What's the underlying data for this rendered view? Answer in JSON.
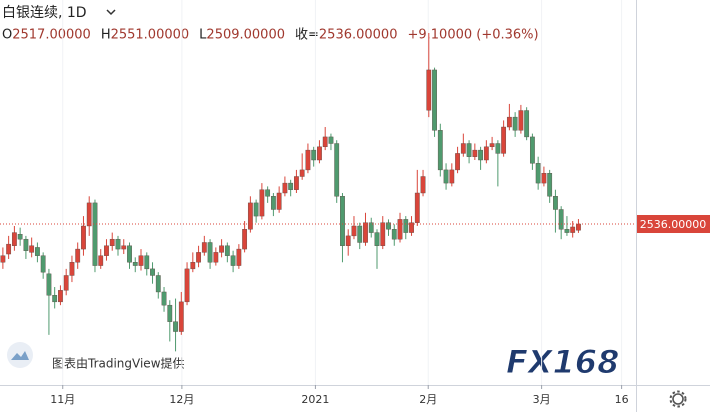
{
  "chart_data": {
    "type": "candlestick",
    "header": {
      "symbol": "白银连续, 1D",
      "items": [
        {
          "label": "O",
          "value": "2517.00000"
        },
        {
          "label": "H",
          "value": "2551.00000"
        },
        {
          "label": "L",
          "value": "2509.00000"
        },
        {
          "label": "收=",
          "value": "2536.00000"
        }
      ],
      "change": "+9.10000 (+0.36%)"
    },
    "up_color": "#d9453a",
    "down_color": "#4f9a6e",
    "last_price": {
      "value": 2536,
      "label": "2536.00000"
    },
    "xlim": [
      -0.5,
      110
    ],
    "ylim": [
      2048,
      3215
    ],
    "xticks": [
      {
        "value": 10.4,
        "label": "11月"
      },
      {
        "value": 31.1,
        "label": "12月"
      },
      {
        "value": 54.3,
        "label": "2021"
      },
      {
        "value": 73.9,
        "label": "2月"
      },
      {
        "value": 93.6,
        "label": "3月"
      },
      {
        "value": 107.5,
        "label": "16"
      }
    ],
    "grid": true,
    "attribution": "图表由TradingView提供",
    "logo": "FX168",
    "ohlc": [
      [
        2420,
        2465,
        2400,
        2440
      ],
      [
        2445,
        2500,
        2430,
        2475
      ],
      [
        2470,
        2530,
        2455,
        2510
      ],
      [
        2505,
        2525,
        2470,
        2490
      ],
      [
        2490,
        2500,
        2430,
        2455
      ],
      [
        2450,
        2495,
        2435,
        2470
      ],
      [
        2465,
        2480,
        2420,
        2440
      ],
      [
        2440,
        2450,
        2370,
        2390
      ],
      [
        2385,
        2400,
        2200,
        2320
      ],
      [
        2320,
        2345,
        2280,
        2300
      ],
      [
        2300,
        2350,
        2290,
        2335
      ],
      [
        2335,
        2400,
        2320,
        2380
      ],
      [
        2380,
        2440,
        2360,
        2420
      ],
      [
        2420,
        2480,
        2400,
        2460
      ],
      [
        2460,
        2560,
        2440,
        2530
      ],
      [
        2530,
        2620,
        2500,
        2600
      ],
      [
        2600,
        2610,
        2390,
        2410
      ],
      [
        2410,
        2460,
        2400,
        2440
      ],
      [
        2440,
        2490,
        2425,
        2470
      ],
      [
        2470,
        2510,
        2455,
        2490
      ],
      [
        2490,
        2500,
        2440,
        2460
      ],
      [
        2460,
        2490,
        2445,
        2470
      ],
      [
        2470,
        2480,
        2400,
        2420
      ],
      [
        2420,
        2435,
        2390,
        2410
      ],
      [
        2410,
        2460,
        2395,
        2440
      ],
      [
        2440,
        2450,
        2380,
        2400
      ],
      [
        2400,
        2420,
        2355,
        2380
      ],
      [
        2380,
        2390,
        2310,
        2330
      ],
      [
        2330,
        2345,
        2270,
        2290
      ],
      [
        2290,
        2305,
        2180,
        2240
      ],
      [
        2240,
        2310,
        2150,
        2210
      ],
      [
        2210,
        2330,
        2200,
        2300
      ],
      [
        2300,
        2420,
        2290,
        2400
      ],
      [
        2400,
        2450,
        2390,
        2420
      ],
      [
        2420,
        2470,
        2405,
        2450
      ],
      [
        2450,
        2500,
        2440,
        2480
      ],
      [
        2480,
        2490,
        2400,
        2420
      ],
      [
        2420,
        2465,
        2410,
        2450
      ],
      [
        2450,
        2490,
        2435,
        2470
      ],
      [
        2470,
        2480,
        2420,
        2440
      ],
      [
        2440,
        2455,
        2390,
        2410
      ],
      [
        2410,
        2475,
        2400,
        2460
      ],
      [
        2460,
        2545,
        2450,
        2520
      ],
      [
        2520,
        2620,
        2510,
        2600
      ],
      [
        2600,
        2610,
        2540,
        2560
      ],
      [
        2560,
        2660,
        2550,
        2640
      ],
      [
        2640,
        2650,
        2600,
        2620
      ],
      [
        2620,
        2630,
        2560,
        2580
      ],
      [
        2580,
        2650,
        2570,
        2630
      ],
      [
        2630,
        2680,
        2620,
        2660
      ],
      [
        2660,
        2670,
        2620,
        2640
      ],
      [
        2640,
        2700,
        2630,
        2680
      ],
      [
        2680,
        2750,
        2670,
        2700
      ],
      [
        2700,
        2780,
        2690,
        2760
      ],
      [
        2760,
        2770,
        2710,
        2730
      ],
      [
        2730,
        2790,
        2720,
        2770
      ],
      [
        2770,
        2830,
        2760,
        2800
      ],
      [
        2800,
        2810,
        2760,
        2780
      ],
      [
        2780,
        2790,
        2600,
        2620
      ],
      [
        2620,
        2630,
        2420,
        2470
      ],
      [
        2470,
        2520,
        2440,
        2500
      ],
      [
        2500,
        2560,
        2490,
        2530
      ],
      [
        2530,
        2540,
        2460,
        2480
      ],
      [
        2480,
        2570,
        2470,
        2540
      ],
      [
        2540,
        2555,
        2495,
        2510
      ],
      [
        2510,
        2520,
        2400,
        2470
      ],
      [
        2470,
        2560,
        2460,
        2540
      ],
      [
        2540,
        2550,
        2500,
        2520
      ],
      [
        2520,
        2535,
        2470,
        2490
      ],
      [
        2490,
        2570,
        2480,
        2550
      ],
      [
        2550,
        2560,
        2490,
        2510
      ],
      [
        2510,
        2560,
        2500,
        2540
      ],
      [
        2540,
        2700,
        2530,
        2630
      ],
      [
        2630,
        2700,
        2620,
        2680
      ],
      [
        2881,
        3115,
        2860,
        3003
      ],
      [
        3003,
        3010,
        2800,
        2820
      ],
      [
        2820,
        2840,
        2680,
        2700
      ],
      [
        2700,
        2720,
        2640,
        2660
      ],
      [
        2660,
        2720,
        2650,
        2700
      ],
      [
        2700,
        2770,
        2690,
        2750
      ],
      [
        2750,
        2810,
        2740,
        2780
      ],
      [
        2780,
        2790,
        2720,
        2740
      ],
      [
        2740,
        2780,
        2730,
        2760
      ],
      [
        2760,
        2770,
        2700,
        2730
      ],
      [
        2730,
        2790,
        2720,
        2770
      ],
      [
        2770,
        2800,
        2760,
        2780
      ],
      [
        2780,
        2790,
        2650,
        2750
      ],
      [
        2750,
        2850,
        2740,
        2830
      ],
      [
        2830,
        2900,
        2820,
        2860
      ],
      [
        2860,
        2875,
        2800,
        2820
      ],
      [
        2820,
        2897,
        2810,
        2880
      ],
      [
        2880,
        2890,
        2790,
        2800
      ],
      [
        2800,
        2810,
        2700,
        2720
      ],
      [
        2720,
        2740,
        2640,
        2660
      ],
      [
        2660,
        2710,
        2650,
        2690
      ],
      [
        2690,
        2700,
        2600,
        2620
      ],
      [
        2620,
        2640,
        2510,
        2580
      ],
      [
        2580,
        2590,
        2490,
        2520
      ],
      [
        2520,
        2560,
        2500,
        2510
      ],
      [
        2510,
        2545,
        2495,
        2527
      ],
      [
        2517,
        2551,
        2509,
        2536
      ]
    ]
  }
}
